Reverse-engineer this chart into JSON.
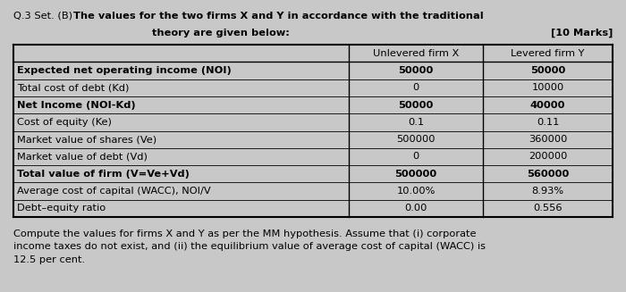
{
  "title_line1": "Q.3 Set. (B)  The values for the two firms X and Y in accordance with the traditional",
  "title_line2": "theory are given below:",
  "marks": "[10 Marks]",
  "col_headers": [
    "",
    "Unlevered firm X",
    "Levered firm Y"
  ],
  "rows": [
    {
      "label": "Expected net operating income (NOI)",
      "bold": true,
      "x": "50000",
      "y": "50000"
    },
    {
      "label": "Total cost of debt (Kd)",
      "bold": false,
      "x": "0",
      "y": "10000"
    },
    {
      "label": "Net Income (NOI-Kd)",
      "bold": true,
      "x": "50000",
      "y": "40000"
    },
    {
      "label": "Cost of equity (Ke)",
      "bold": false,
      "x": "0.1",
      "y": "0.11"
    },
    {
      "label": "Market value of shares (Ve)",
      "bold": false,
      "x": "500000",
      "y": "360000"
    },
    {
      "label": "Market value of debt (Vd)",
      "bold": false,
      "x": "0",
      "y": "200000"
    },
    {
      "label": "Total value of firm (V=Ve+Vd)",
      "bold": true,
      "x": "500000",
      "y": "560000"
    },
    {
      "label": "Average cost of capital (WACC), NOI/V",
      "bold": false,
      "x": "10.00%",
      "y": "8.93%"
    },
    {
      "label": "Debt–equity ratio",
      "bold": false,
      "x": "0.00",
      "y": "0.556"
    }
  ],
  "footer": "Compute the values for firms X and Y as per the MM hypothesis. Assume that (i) corporate\nincome taxes do not exist, and (ii) the equilibrium value of average cost of capital (WACC) is\n12.5 per cent.",
  "bg_color": "#c8c8c8",
  "table_bg": "#ffffff",
  "title_bold_part": "The values for the two firms X and Y in accordance with the traditional",
  "title_prefix": "Q.3 Set. (B)  ",
  "font_size": 8.2,
  "header_font_size": 8.2
}
